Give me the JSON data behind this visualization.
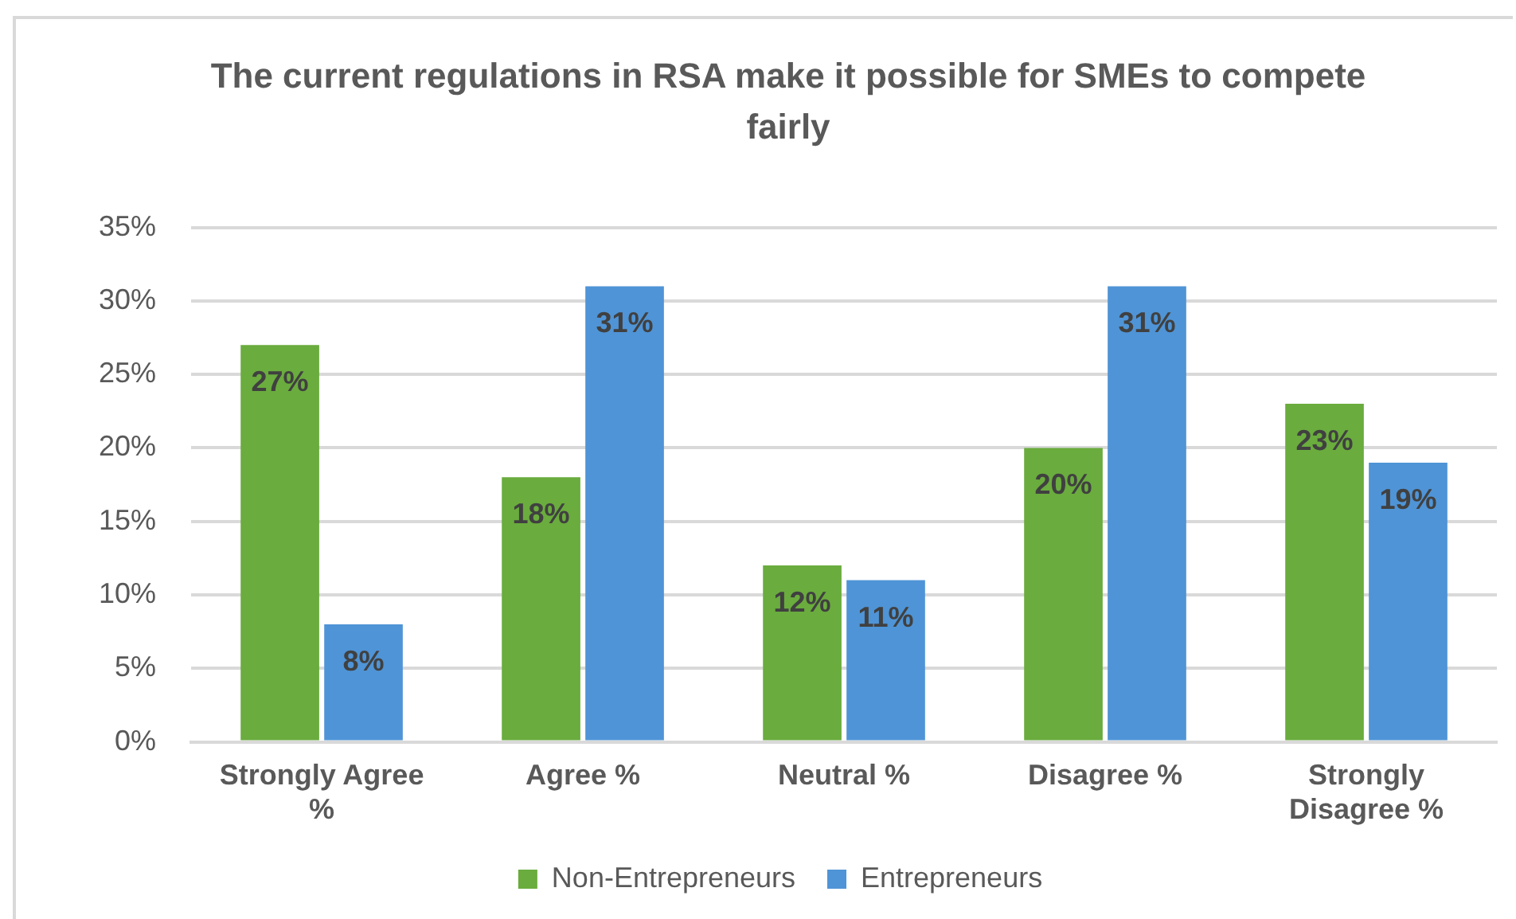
{
  "chart_data": {
    "type": "bar",
    "title": "The current regulations in RSA make it possible for SMEs to compete fairly",
    "categories": [
      "Strongly Agree %",
      "Agree %",
      "Neutral %",
      "Disagree %",
      "Strongly Disagree %"
    ],
    "series": [
      {
        "name": "Non-Entrepreneurs",
        "color": "#6aac3e",
        "values": [
          27,
          18,
          12,
          20,
          23
        ],
        "value_labels": [
          "27%",
          "18%",
          "12%",
          "20%",
          "23%"
        ]
      },
      {
        "name": "Entrepreneurs",
        "color": "#4f94d6",
        "values": [
          8,
          31,
          11,
          31,
          19
        ],
        "value_labels": [
          "8%",
          "31%",
          "11%",
          "31%",
          "19%"
        ]
      }
    ],
    "ylim": [
      0,
      35
    ],
    "yticks": [
      {
        "value": 0,
        "label": "0%"
      },
      {
        "value": 5,
        "label": "5%"
      },
      {
        "value": 10,
        "label": "10%"
      },
      {
        "value": 15,
        "label": "15%"
      },
      {
        "value": 20,
        "label": "20%"
      },
      {
        "value": 25,
        "label": "25%"
      },
      {
        "value": 30,
        "label": "30%"
      },
      {
        "value": 35,
        "label": "35%"
      }
    ],
    "grid": "y",
    "legend": "bottom"
  }
}
